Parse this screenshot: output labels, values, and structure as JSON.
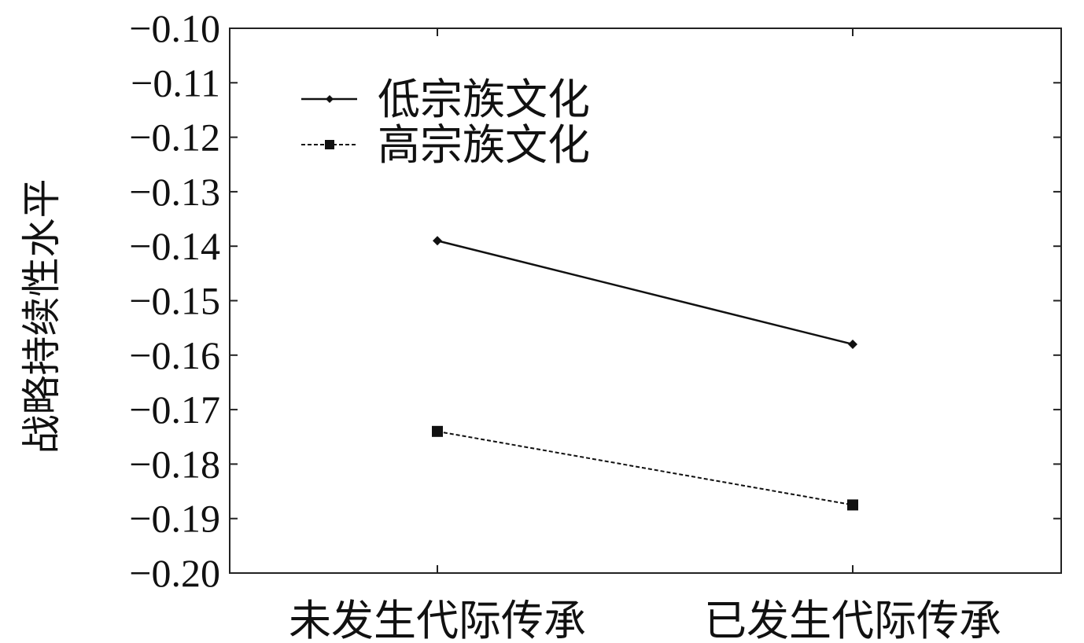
{
  "chart_data": {
    "type": "line",
    "title": "",
    "xlabel": "",
    "ylabel": "战略持续性水平",
    "categories": [
      "未发生代际传承",
      "已发生代际传承"
    ],
    "ylim": [
      -0.2,
      -0.1
    ],
    "yticks": [
      "−0.10",
      "−0.11",
      "−0.12",
      "−0.13",
      "−0.14",
      "−0.15",
      "−0.16",
      "−0.17",
      "−0.18",
      "−0.19",
      "−0.20"
    ],
    "ytick_values": [
      -0.1,
      -0.11,
      -0.12,
      -0.13,
      -0.14,
      -0.15,
      -0.16,
      -0.17,
      -0.18,
      -0.19,
      -0.2
    ],
    "series": [
      {
        "name": "低宗族文化",
        "values": [
          -0.139,
          -0.158
        ],
        "line_style": "solid",
        "marker": "diamond",
        "color": "#111111"
      },
      {
        "name": "高宗族文化",
        "values": [
          -0.174,
          -0.1875
        ],
        "line_style": "dashed",
        "marker": "square",
        "color": "#111111"
      }
    ],
    "grid": false,
    "legend_position": "top-left"
  }
}
